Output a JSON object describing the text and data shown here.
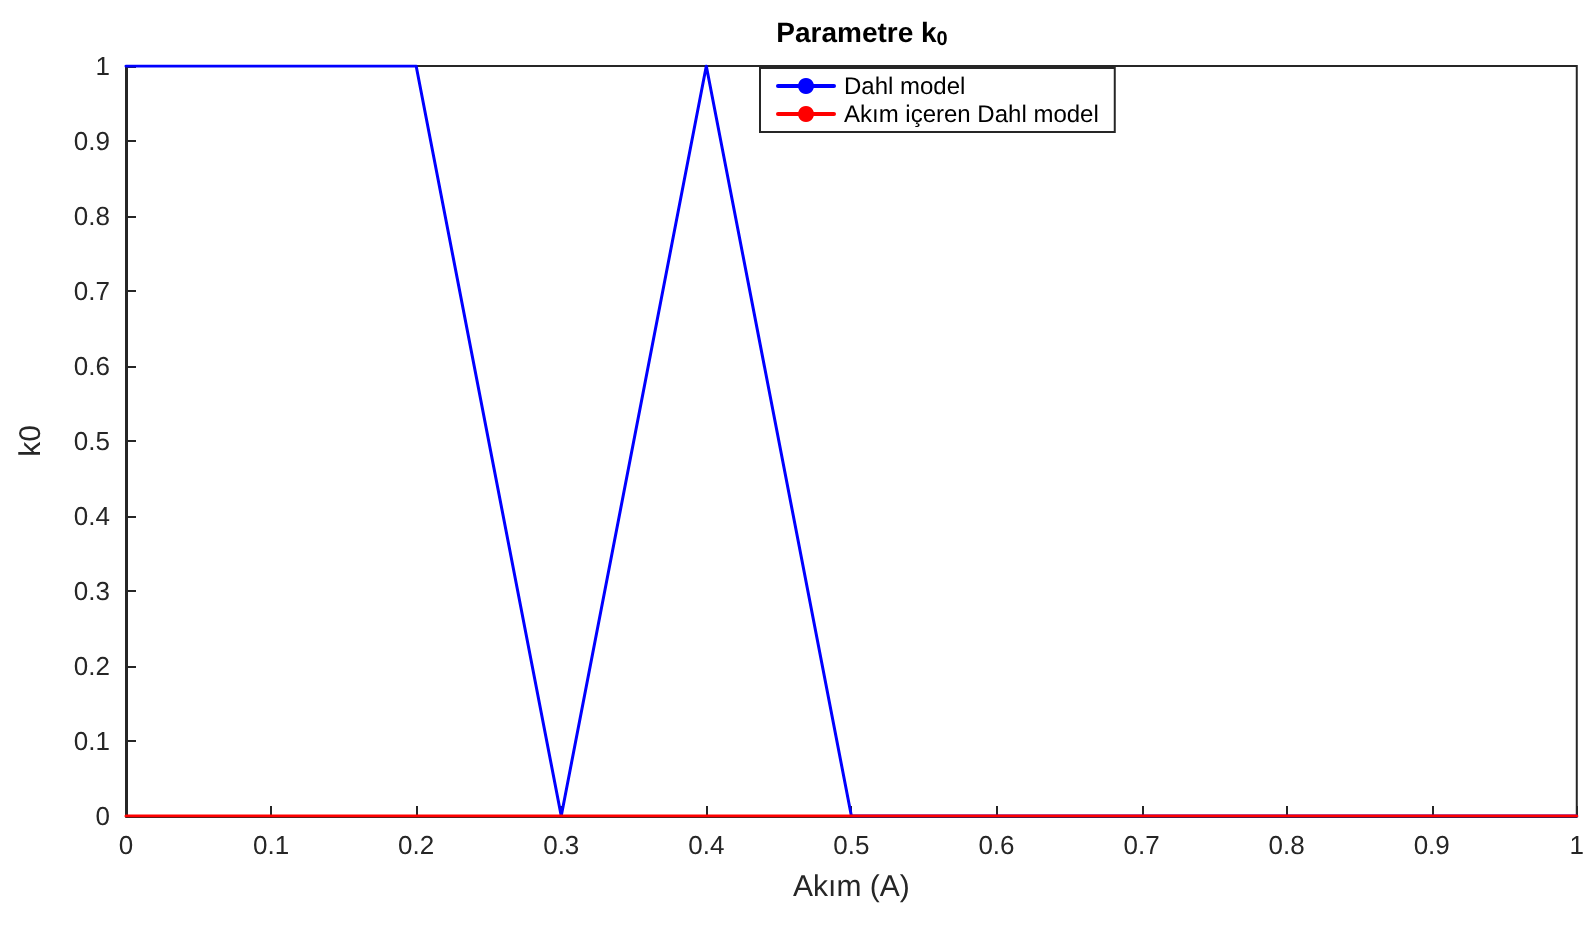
{
  "chart_data": {
    "type": "line",
    "title": "Parametre k$_{0}$",
    "xlabel": "Akım (A)",
    "ylabel": "k0",
    "series": [
      {
        "name": "Dahl model",
        "color": "#0000ff",
        "x": [
          0,
          0.2,
          0.3,
          0.4,
          0.5,
          1
        ],
        "values": [
          1,
          1,
          0,
          1,
          0,
          0
        ]
      },
      {
        "name": "Akım içeren Dahl model",
        "color": "#ff0000",
        "x": [
          0,
          1
        ],
        "values": [
          0,
          0
        ]
      }
    ],
    "xlim": [
      0,
      1
    ],
    "xticks": [
      0,
      0.1,
      0.2,
      0.3,
      0.4,
      0.5,
      0.6,
      0.7,
      0.8,
      0.9,
      1
    ],
    "ylim": [
      0,
      1
    ],
    "yticks": [
      0,
      0.1,
      0.2,
      0.3,
      0.4,
      0.5,
      0.6,
      0.7,
      0.8,
      0.9,
      1
    ],
    "grid": false,
    "legend": "top right",
    "marker": "none",
    "line_style": "solid"
  }
}
